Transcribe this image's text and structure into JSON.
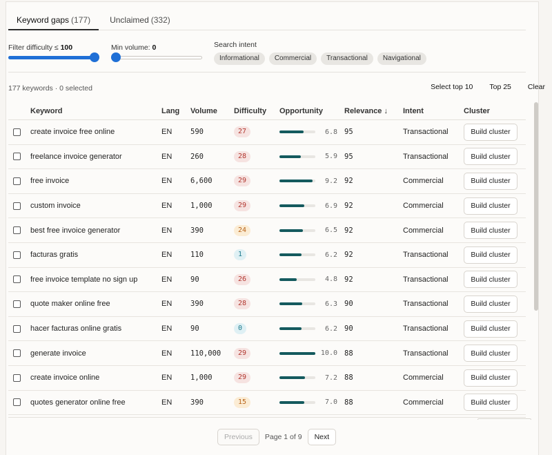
{
  "tabs": [
    {
      "label": "Keyword gaps",
      "count": "(177)",
      "active": true
    },
    {
      "label": "Unclaimed",
      "count": "(332)",
      "active": false
    }
  ],
  "filters": {
    "difficulty_label": "Filter difficulty ≤",
    "difficulty_value": "100",
    "difficulty_level": 1.0,
    "volume_label": "Min volume:",
    "volume_value": "0",
    "volume_level": 0.0,
    "intent_label": "Search intent",
    "intent_chips": [
      "Informational",
      "Commercial",
      "Transactional",
      "Navigational"
    ]
  },
  "summary": "177 keywords · 0 selected",
  "actions": {
    "select_top10": "Select top 10",
    "top25": "Top 25",
    "clear": "Clear"
  },
  "columns": {
    "keyword": "Keyword",
    "lang": "Lang",
    "volume": "Volume",
    "difficulty": "Difficulty",
    "opportunity": "Opportunity",
    "relevance": "Relevance ↓",
    "intent": "Intent",
    "cluster": "Cluster"
  },
  "rows": [
    {
      "keyword": "create invoice free online",
      "lang": "EN",
      "volume": "590",
      "difficulty": "27",
      "diff_level": "hard",
      "opportunity": "6.8",
      "relevance": "95",
      "intent": "Transactional",
      "button": "Build cluster"
    },
    {
      "keyword": "freelance invoice generator",
      "lang": "EN",
      "volume": "260",
      "difficulty": "28",
      "diff_level": "hard",
      "opportunity": "5.9",
      "relevance": "95",
      "intent": "Transactional",
      "button": "Build cluster"
    },
    {
      "keyword": "free invoice",
      "lang": "EN",
      "volume": "6,600",
      "difficulty": "29",
      "diff_level": "hard",
      "opportunity": "9.2",
      "relevance": "92",
      "intent": "Commercial",
      "button": "Build cluster"
    },
    {
      "keyword": "custom invoice",
      "lang": "EN",
      "volume": "1,000",
      "difficulty": "29",
      "diff_level": "hard",
      "opportunity": "6.9",
      "relevance": "92",
      "intent": "Commercial",
      "button": "Build cluster"
    },
    {
      "keyword": "best free invoice generator",
      "lang": "EN",
      "volume": "390",
      "difficulty": "24",
      "diff_level": "med",
      "opportunity": "6.5",
      "relevance": "92",
      "intent": "Commercial",
      "button": "Build cluster"
    },
    {
      "keyword": "facturas gratis",
      "lang": "EN",
      "volume": "110",
      "difficulty": "1",
      "diff_level": "easy",
      "opportunity": "6.2",
      "relevance": "92",
      "intent": "Transactional",
      "button": "Build cluster"
    },
    {
      "keyword": "free invoice template no sign up",
      "lang": "EN",
      "volume": "90",
      "difficulty": "26",
      "diff_level": "hard",
      "opportunity": "4.8",
      "relevance": "92",
      "intent": "Transactional",
      "button": "Build cluster"
    },
    {
      "keyword": "quote maker online free",
      "lang": "EN",
      "volume": "390",
      "difficulty": "28",
      "diff_level": "hard",
      "opportunity": "6.3",
      "relevance": "90",
      "intent": "Transactional",
      "button": "Build cluster"
    },
    {
      "keyword": "hacer facturas online gratis",
      "lang": "EN",
      "volume": "90",
      "difficulty": "0",
      "diff_level": "easy",
      "opportunity": "6.2",
      "relevance": "90",
      "intent": "Transactional",
      "button": "Build cluster"
    },
    {
      "keyword": "generate invoice",
      "lang": "EN",
      "volume": "110,000",
      "difficulty": "29",
      "diff_level": "hard",
      "opportunity": "10.0",
      "relevance": "88",
      "intent": "Transactional",
      "button": "Build cluster"
    },
    {
      "keyword": "create invoice online",
      "lang": "EN",
      "volume": "1,000",
      "difficulty": "29",
      "diff_level": "hard",
      "opportunity": "7.2",
      "relevance": "88",
      "intent": "Commercial",
      "button": "Build cluster"
    },
    {
      "keyword": "quotes generator online free",
      "lang": "EN",
      "volume": "390",
      "difficulty": "15",
      "diff_level": "med",
      "opportunity": "7.0",
      "relevance": "88",
      "intent": "Commercial",
      "button": "Build cluster"
    }
  ],
  "opportunity_max": 10.0,
  "pagination": {
    "previous": "Previous",
    "info": "Page 1 of 9",
    "next": "Next"
  }
}
